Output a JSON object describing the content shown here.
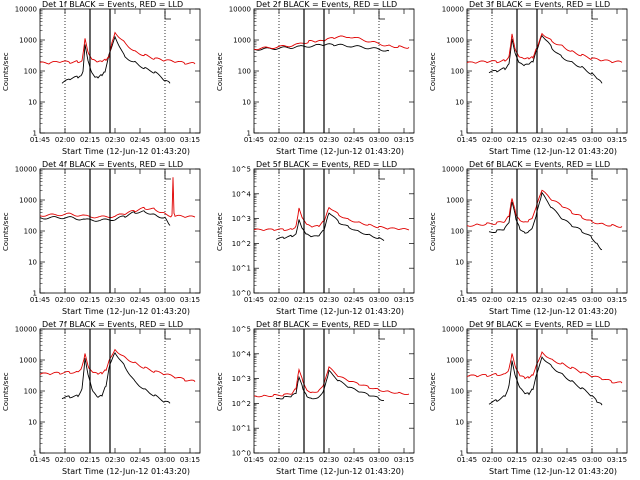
{
  "chart_data": [
    {
      "type": "line",
      "title": "Det 1f BLACK = Events, RED = LLD",
      "xlabel": "Start Time (12-Jun-12 01:43:20)",
      "ylabel": "Counts/sec",
      "xticks": [
        "01:45",
        "02:00",
        "02:15",
        "02:30",
        "02:45",
        "03:00",
        "03:15"
      ],
      "yticks": [
        "1",
        "10",
        "100",
        "1000",
        "10000"
      ],
      "yscale": "log",
      "ylim": [
        1,
        10000
      ],
      "xlim": [
        1.75,
        3.35
      ],
      "dotted_x": [
        2.0,
        3.0
      ],
      "solid_x": [
        2.25,
        2.45
      ],
      "series": [
        {
          "color": "#000000",
          "x": [
            1.97,
            2.05,
            2.13,
            2.16,
            2.18,
            2.2,
            2.24,
            2.27,
            2.3,
            2.33,
            2.37,
            2.4,
            2.45,
            2.5,
            2.6,
            2.7,
            2.8,
            2.9,
            3.0,
            3.05
          ],
          "values": [
            40,
            55,
            65,
            75,
            100,
            700,
            160,
            80,
            60,
            60,
            75,
            100,
            450,
            1300,
            280,
            190,
            120,
            90,
            50,
            40
          ]
        },
        {
          "color": "#e00000",
          "x": [
            1.75,
            1.85,
            1.95,
            2.05,
            2.13,
            2.17,
            2.2,
            2.24,
            2.28,
            2.33,
            2.37,
            2.41,
            2.44,
            2.47,
            2.5,
            2.6,
            2.7,
            2.8,
            2.9,
            3.0,
            3.1,
            3.2,
            3.3
          ],
          "values": [
            180,
            180,
            200,
            190,
            200,
            220,
            1100,
            320,
            220,
            190,
            200,
            230,
            300,
            900,
            1800,
            800,
            420,
            320,
            250,
            220,
            200,
            180,
            170
          ]
        }
      ]
    },
    {
      "type": "line",
      "title": "Det 2f BLACK = Events, RED = LLD",
      "xlabel": "Start Time (12-Jun-12 01:43:20)",
      "ylabel": "Counts/sec",
      "xticks": [
        "01:45",
        "02:00",
        "02:15",
        "02:30",
        "02:45",
        "03:00",
        "03:15"
      ],
      "yticks": [
        "1",
        "10",
        "100",
        "1000",
        "10000"
      ],
      "yscale": "log",
      "ylim": [
        1,
        10000
      ],
      "xlim": [
        1.75,
        3.35
      ],
      "dotted_x": [
        2.0,
        3.0
      ],
      "solid_x": [
        2.25,
        2.45
      ],
      "series": [
        {
          "color": "#000000",
          "x": [
            1.75,
            1.9,
            2.05,
            2.2,
            2.35,
            2.45,
            2.55,
            2.7,
            2.85,
            3.0,
            3.1
          ],
          "values": [
            500,
            520,
            560,
            600,
            650,
            700,
            700,
            650,
            580,
            500,
            450
          ]
        },
        {
          "color": "#e00000",
          "x": [
            1.75,
            1.9,
            2.05,
            2.2,
            2.3,
            2.37,
            2.45,
            2.55,
            2.7,
            2.85,
            3.0,
            3.1,
            3.2,
            3.3
          ],
          "values": [
            520,
            560,
            620,
            720,
            900,
            850,
            950,
            1200,
            1300,
            1000,
            750,
            650,
            600,
            580
          ]
        }
      ]
    },
    {
      "type": "line",
      "title": "Det 3f BLACK = Events, RED = LLD",
      "xlabel": "Start Time (12-Jun-12 01:43:20)",
      "ylabel": "Counts/sec",
      "xticks": [
        "01:45",
        "02:00",
        "02:15",
        "02:30",
        "02:45",
        "03:00",
        "03:15"
      ],
      "yticks": [
        "1",
        "10",
        "100",
        "1000",
        "10000"
      ],
      "yscale": "log",
      "ylim": [
        1,
        10000
      ],
      "xlim": [
        1.75,
        3.35
      ],
      "dotted_x": [
        2.0,
        3.0
      ],
      "solid_x": [
        2.25,
        2.45
      ],
      "series": [
        {
          "color": "#000000",
          "x": [
            1.97,
            2.05,
            2.13,
            2.17,
            2.2,
            2.24,
            2.28,
            2.33,
            2.37,
            2.41,
            2.45,
            2.5,
            2.6,
            2.7,
            2.8,
            2.9,
            3.0,
            3.05,
            3.1
          ],
          "values": [
            90,
            100,
            120,
            180,
            1100,
            300,
            170,
            150,
            160,
            200,
            500,
            1500,
            550,
            280,
            190,
            130,
            80,
            55,
            40
          ]
        },
        {
          "color": "#e00000",
          "x": [
            1.75,
            1.85,
            1.95,
            2.05,
            2.13,
            2.17,
            2.2,
            2.24,
            2.28,
            2.33,
            2.37,
            2.41,
            2.45,
            2.5,
            2.6,
            2.7,
            2.8,
            2.9,
            3.0,
            3.1,
            3.2,
            3.3
          ],
          "values": [
            180,
            190,
            200,
            200,
            220,
            300,
            1500,
            400,
            260,
            240,
            250,
            280,
            600,
            1700,
            900,
            650,
            420,
            320,
            250,
            220,
            200,
            190
          ]
        }
      ]
    },
    {
      "type": "line",
      "title": "Det 4f BLACK = Events, RED = LLD",
      "xlabel": "Start Time (12-Jun-12 01:43:20)",
      "ylabel": "Counts/sec",
      "xticks": [
        "01:45",
        "02:00",
        "02:15",
        "02:30",
        "02:45",
        "03:00",
        "03:15"
      ],
      "yticks": [
        "1",
        "10",
        "100",
        "1000",
        "10000"
      ],
      "yscale": "log",
      "ylim": [
        1,
        10000
      ],
      "xlim": [
        1.75,
        3.35
      ],
      "dotted_x": [
        2.0,
        3.0
      ],
      "solid_x": [
        2.25,
        2.45
      ],
      "series": [
        {
          "color": "#000000",
          "x": [
            1.75,
            1.9,
            2.05,
            2.2,
            2.35,
            2.5,
            2.6,
            2.7,
            2.8,
            2.9,
            3.0,
            3.05
          ],
          "values": [
            260,
            270,
            270,
            230,
            220,
            240,
            300,
            400,
            420,
            330,
            260,
            150
          ]
        },
        {
          "color": "#e00000",
          "x": [
            1.75,
            1.9,
            2.05,
            2.2,
            2.35,
            2.5,
            2.6,
            2.7,
            2.8,
            2.9,
            3.0,
            3.07,
            3.08,
            3.09,
            3.1,
            3.2,
            3.3
          ],
          "values": [
            320,
            330,
            350,
            300,
            280,
            300,
            360,
            450,
            550,
            500,
            360,
            300,
            5000,
            350,
            300,
            290,
            280
          ]
        }
      ]
    },
    {
      "type": "line",
      "title": "Det 5f BLACK = Events, RED = LLD",
      "xlabel": "Start Time (12-Jun-12 01:43:20)",
      "ylabel": "Counts/sec",
      "xticks": [
        "01:45",
        "02:00",
        "02:15",
        "02:30",
        "02:45",
        "03:00",
        "03:15"
      ],
      "yticks": [
        "10^0",
        "10^1",
        "10^2",
        "10^3",
        "10^4",
        "10^5"
      ],
      "yscale": "log",
      "ylim": [
        1,
        100000
      ],
      "xlim": [
        1.75,
        3.35
      ],
      "dotted_x": [
        2.0,
        3.0
      ],
      "solid_x": [
        2.25,
        2.45
      ],
      "series": [
        {
          "color": "#000000",
          "x": [
            1.97,
            2.05,
            2.13,
            2.17,
            2.2,
            2.24,
            2.28,
            2.33,
            2.4,
            2.45,
            2.5,
            2.6,
            2.7,
            2.8,
            2.9,
            3.0,
            3.05
          ],
          "values": [
            150,
            170,
            200,
            250,
            900,
            350,
            220,
            180,
            200,
            350,
            1800,
            700,
            450,
            300,
            220,
            160,
            130
          ]
        },
        {
          "color": "#e00000",
          "x": [
            1.75,
            1.85,
            1.95,
            2.05,
            2.13,
            2.17,
            2.2,
            2.24,
            2.28,
            2.33,
            2.4,
            2.45,
            2.5,
            2.6,
            2.7,
            2.8,
            2.9,
            3.0,
            3.1,
            3.2,
            3.3
          ],
          "values": [
            350,
            350,
            360,
            360,
            380,
            500,
            2500,
            900,
            550,
            450,
            500,
            800,
            3000,
            1400,
            900,
            700,
            550,
            450,
            400,
            380,
            350
          ]
        }
      ]
    },
    {
      "type": "line",
      "title": "Det 6f BLACK = Events, RED = LLD",
      "xlabel": "Start Time (12-Jun-12 01:43:20)",
      "ylabel": "Counts/sec",
      "xticks": [
        "01:45",
        "02:00",
        "02:15",
        "02:30",
        "02:45",
        "03:00",
        "03:15"
      ],
      "yticks": [
        "1",
        "10",
        "100",
        "1000",
        "10000"
      ],
      "yscale": "log",
      "ylim": [
        1,
        10000
      ],
      "xlim": [
        1.75,
        3.35
      ],
      "dotted_x": [
        2.0,
        3.0
      ],
      "solid_x": [
        2.25,
        2.45
      ],
      "series": [
        {
          "color": "#000000",
          "x": [
            1.97,
            2.05,
            2.13,
            2.17,
            2.2,
            2.24,
            2.28,
            2.33,
            2.37,
            2.41,
            2.45,
            2.5,
            2.6,
            2.7,
            2.8,
            2.9,
            3.0,
            3.05,
            3.1
          ],
          "values": [
            90,
            100,
            120,
            180,
            900,
            250,
            120,
            90,
            100,
            140,
            400,
            1600,
            550,
            250,
            150,
            100,
            60,
            40,
            25
          ]
        },
        {
          "color": "#e00000",
          "x": [
            1.75,
            1.85,
            1.95,
            2.05,
            2.13,
            2.17,
            2.2,
            2.24,
            2.28,
            2.33,
            2.37,
            2.41,
            2.45,
            2.5,
            2.6,
            2.7,
            2.8,
            2.9,
            3.0,
            3.1,
            3.2,
            3.3
          ],
          "values": [
            150,
            160,
            170,
            180,
            200,
            300,
            1200,
            350,
            230,
            200,
            220,
            280,
            700,
            2000,
            1000,
            650,
            400,
            280,
            200,
            170,
            150,
            140
          ]
        }
      ]
    },
    {
      "type": "line",
      "title": "Det 7f BLACK = Events, RED = LLD",
      "xlabel": "Start Time (12-Jun-12 01:43:20)",
      "ylabel": "Counts/sec",
      "xticks": [
        "01:45",
        "02:00",
        "02:15",
        "02:30",
        "02:45",
        "03:00",
        "03:15"
      ],
      "yticks": [
        "1",
        "10",
        "100",
        "1000",
        "10000"
      ],
      "yscale": "log",
      "ylim": [
        1,
        10000
      ],
      "xlim": [
        1.75,
        3.35
      ],
      "dotted_x": [
        2.0,
        3.0
      ],
      "solid_x": [
        2.25,
        2.45
      ],
      "series": [
        {
          "color": "#000000",
          "x": [
            1.97,
            2.05,
            2.13,
            2.17,
            2.2,
            2.24,
            2.28,
            2.33,
            2.37,
            2.41,
            2.45,
            2.5,
            2.6,
            2.7,
            2.8,
            2.9,
            3.0,
            3.05
          ],
          "values": [
            60,
            65,
            70,
            120,
            1100,
            250,
            90,
            60,
            70,
            150,
            800,
            1800,
            600,
            200,
            110,
            70,
            45,
            40
          ]
        },
        {
          "color": "#e00000",
          "x": [
            1.75,
            1.85,
            1.95,
            2.05,
            2.13,
            2.17,
            2.2,
            2.24,
            2.28,
            2.33,
            2.37,
            2.41,
            2.45,
            2.5,
            2.6,
            2.7,
            2.8,
            2.9,
            3.0,
            3.1,
            3.2,
            3.3
          ],
          "values": [
            350,
            360,
            380,
            400,
            420,
            600,
            1500,
            500,
            380,
            350,
            380,
            500,
            1200,
            2200,
            1200,
            800,
            550,
            420,
            350,
            280,
            230,
            200
          ]
        }
      ]
    },
    {
      "type": "line",
      "title": "Det 8f BLACK = Events, RED = LLD",
      "xlabel": "Start Time (12-Jun-12 01:43:20)",
      "ylabel": "Counts/sec",
      "xticks": [
        "01:45",
        "02:00",
        "02:15",
        "02:30",
        "02:45",
        "03:00",
        "03:15"
      ],
      "yticks": [
        "10^0",
        "10^1",
        "10^2",
        "10^3",
        "10^4",
        "10^5"
      ],
      "yscale": "log",
      "ylim": [
        1,
        100000
      ],
      "xlim": [
        1.75,
        3.35
      ],
      "dotted_x": [
        2.0,
        3.0
      ],
      "solid_x": [
        2.25,
        2.45
      ],
      "series": [
        {
          "color": "#000000",
          "x": [
            1.97,
            2.05,
            2.13,
            2.17,
            2.2,
            2.24,
            2.28,
            2.33,
            2.4,
            2.45,
            2.5,
            2.6,
            2.7,
            2.8,
            2.9,
            3.0,
            3.05
          ],
          "values": [
            150,
            170,
            200,
            250,
            1200,
            400,
            200,
            160,
            180,
            350,
            2000,
            800,
            450,
            300,
            220,
            160,
            130
          ]
        },
        {
          "color": "#e00000",
          "x": [
            1.75,
            1.85,
            1.95,
            2.05,
            2.13,
            2.17,
            2.2,
            2.24,
            2.28,
            2.33,
            2.4,
            2.45,
            2.5,
            2.6,
            2.7,
            2.8,
            2.9,
            3.0,
            3.1,
            3.2,
            3.3
          ],
          "values": [
            200,
            200,
            210,
            220,
            240,
            400,
            2500,
            800,
            350,
            280,
            320,
            600,
            2800,
            1200,
            800,
            600,
            450,
            350,
            300,
            260,
            240
          ]
        }
      ]
    },
    {
      "type": "line",
      "title": "Det 9f BLACK = Events, RED = LLD",
      "xlabel": "Start Time (12-Jun-12 01:43:20)",
      "ylabel": "Counts/sec",
      "xticks": [
        "01:45",
        "02:00",
        "02:15",
        "02:30",
        "02:45",
        "03:00",
        "03:15"
      ],
      "yticks": [
        "1",
        "10",
        "100",
        "1000",
        "10000"
      ],
      "yscale": "log",
      "ylim": [
        1,
        10000
      ],
      "xlim": [
        1.75,
        3.35
      ],
      "dotted_x": [
        2.0,
        3.0
      ],
      "solid_x": [
        2.25,
        2.45
      ],
      "series": [
        {
          "color": "#000000",
          "x": [
            1.97,
            2.05,
            2.13,
            2.17,
            2.2,
            2.24,
            2.28,
            2.33,
            2.37,
            2.41,
            2.45,
            2.5,
            2.6,
            2.7,
            2.8,
            2.9,
            3.0,
            3.05,
            3.1
          ],
          "values": [
            40,
            50,
            70,
            150,
            900,
            250,
            120,
            80,
            80,
            120,
            400,
            1300,
            600,
            350,
            200,
            120,
            70,
            45,
            35
          ]
        },
        {
          "color": "#e00000",
          "x": [
            1.75,
            1.85,
            1.95,
            2.05,
            2.13,
            2.17,
            2.2,
            2.24,
            2.28,
            2.33,
            2.37,
            2.41,
            2.45,
            2.5,
            2.6,
            2.7,
            2.8,
            2.9,
            3.0,
            3.1,
            3.2,
            3.3
          ],
          "values": [
            300,
            310,
            320,
            340,
            360,
            500,
            1500,
            500,
            300,
            260,
            280,
            350,
            800,
            1800,
            1000,
            750,
            550,
            400,
            300,
            250,
            200,
            180
          ]
        }
      ]
    }
  ]
}
